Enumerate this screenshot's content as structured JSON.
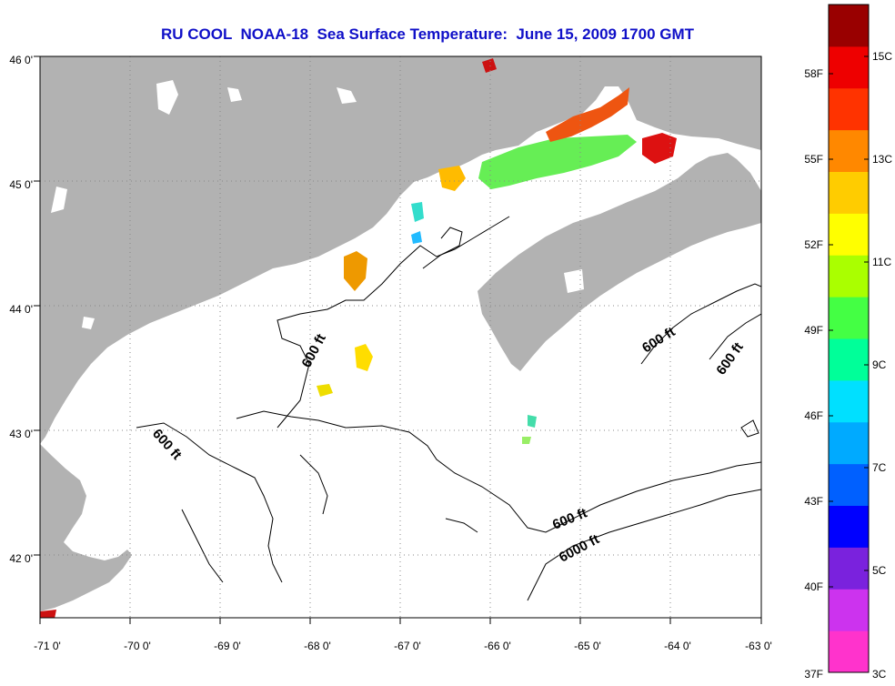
{
  "title": "RU COOL  NOAA-18  Sea Surface Temperature:  June 15, 2009 1700 GMT",
  "map": {
    "lon_min": -71,
    "lon_max": -63,
    "lat_min": 41.5,
    "lat_max": 46,
    "lon_ticks": [
      "-71 0'",
      "-70 0'",
      "-69 0'",
      "-68 0'",
      "-67 0'",
      "-66 0'",
      "-65 0'",
      "-64 0'",
      "-63 0'"
    ],
    "lat_ticks": [
      "46 0'",
      "45 0'",
      "44 0'",
      "43 0'",
      "42 0'"
    ],
    "land_color": "#b2b2b2",
    "water_color": "#ffffff",
    "grid": "dotted",
    "contour_labels": [
      {
        "text": "600 ft"
      },
      {
        "text": "600 ft"
      },
      {
        "text": "600 ft"
      },
      {
        "text": "600 ft"
      },
      {
        "text": "600 ft"
      },
      {
        "text": "6000 ft"
      }
    ]
  },
  "colorbar": {
    "f_labels": [
      "58F",
      "55F",
      "52F",
      "49F",
      "46F",
      "43F",
      "40F",
      "37F"
    ],
    "c_labels": [
      "15C",
      "13C",
      "11C",
      "9C",
      "7C",
      "5C",
      "3C"
    ],
    "colors": [
      "#ff33cc",
      "#cc33ee",
      "#7a22dd",
      "#0000ff",
      "#0060ff",
      "#00aaff",
      "#00e0ff",
      "#00ff99",
      "#44ff44",
      "#aaff00",
      "#ffff00",
      "#ffcc00",
      "#ff8800",
      "#ff3300",
      "#ee0000",
      "#990000"
    ]
  }
}
